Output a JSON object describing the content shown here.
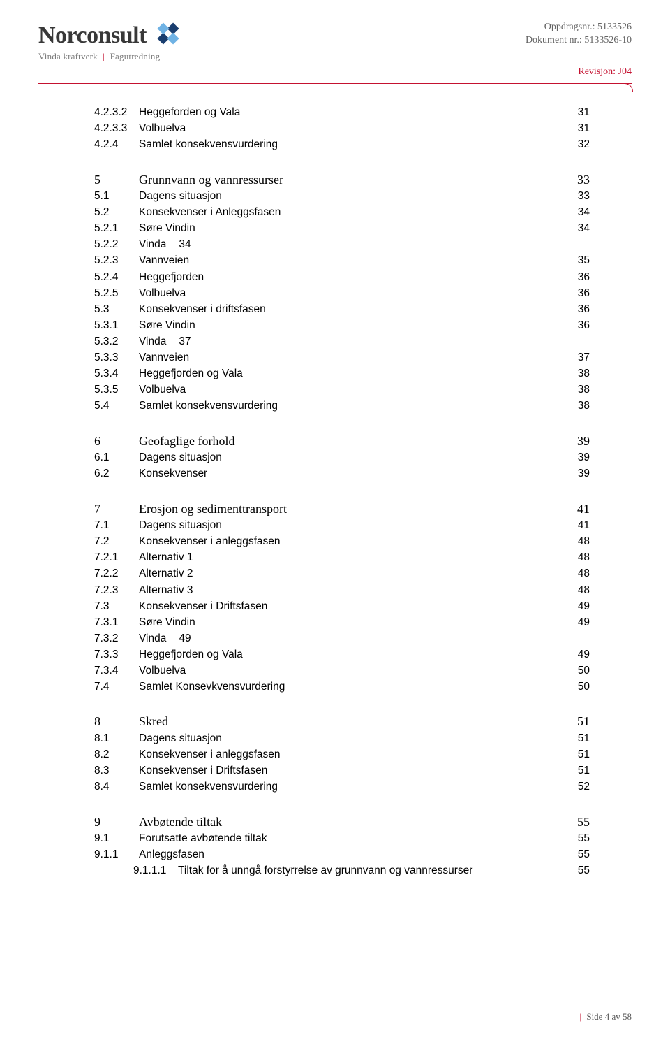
{
  "brand": {
    "name": "Norconsult",
    "tagline_left": "Vinda kraftverk",
    "tagline_right": "Fagutredning",
    "logo_colors": {
      "dark": "#1a3e6f",
      "light": "#6fb2e4"
    }
  },
  "header": {
    "oppdrag_label": "Oppdragsnr.:",
    "oppdrag_value": "5133526",
    "dokument_label": "Dokument nr.:",
    "dokument_value": "5133526-10",
    "revision_label": "Revisjon:",
    "revision_value": "J04"
  },
  "toc": [
    {
      "type": "row",
      "level": 2,
      "num": "4.2.3.2",
      "label": "Heggeforden og Vala",
      "page": "31"
    },
    {
      "type": "row",
      "level": 2,
      "num": "4.2.3.3",
      "label": "Volbuelva",
      "page": "31"
    },
    {
      "type": "row",
      "level": 1,
      "num": "4.2.4",
      "label": "Samlet konsekvensvurdering",
      "page": "32"
    },
    {
      "type": "gap"
    },
    {
      "type": "chapter",
      "num": "5",
      "label": "Grunnvann og vannressurser",
      "page": "33"
    },
    {
      "type": "row",
      "level": 1,
      "num": "5.1",
      "label": "Dagens situasjon",
      "page": "33"
    },
    {
      "type": "row",
      "level": 1,
      "num": "5.2",
      "label": "Konsekvenser i Anleggsfasen",
      "page": "34"
    },
    {
      "type": "row",
      "level": 2,
      "num": "5.2.1",
      "label": "Søre Vindin",
      "page": "34"
    },
    {
      "type": "inline",
      "level": 2,
      "num": "5.2.2",
      "label": "Vinda",
      "page": "34"
    },
    {
      "type": "row",
      "level": 2,
      "num": "5.2.3",
      "label": "Vannveien",
      "page": "35"
    },
    {
      "type": "row",
      "level": 2,
      "num": "5.2.4",
      "label": "Heggefjorden",
      "page": "36"
    },
    {
      "type": "row",
      "level": 2,
      "num": "5.2.5",
      "label": "Volbuelva",
      "page": "36"
    },
    {
      "type": "row",
      "level": 1,
      "num": "5.3",
      "label": "Konsekvenser i driftsfasen",
      "page": "36"
    },
    {
      "type": "row",
      "level": 2,
      "num": "5.3.1",
      "label": "Søre Vindin",
      "page": "36"
    },
    {
      "type": "inline",
      "level": 2,
      "num": "5.3.2",
      "label": "Vinda",
      "page": "37"
    },
    {
      "type": "row",
      "level": 2,
      "num": "5.3.3",
      "label": "Vannveien",
      "page": "37"
    },
    {
      "type": "row",
      "level": 2,
      "num": "5.3.4",
      "label": "Heggefjorden og Vala",
      "page": "38"
    },
    {
      "type": "row",
      "level": 2,
      "num": "5.3.5",
      "label": "Volbuelva",
      "page": "38"
    },
    {
      "type": "row",
      "level": 1,
      "num": "5.4",
      "label": "Samlet konsekvensvurdering",
      "page": "38"
    },
    {
      "type": "gap"
    },
    {
      "type": "chapter",
      "num": "6",
      "label": "Geofaglige forhold",
      "page": "39"
    },
    {
      "type": "row",
      "level": 1,
      "num": "6.1",
      "label": "Dagens situasjon",
      "page": "39"
    },
    {
      "type": "row",
      "level": 1,
      "num": "6.2",
      "label": "Konsekvenser",
      "page": "39"
    },
    {
      "type": "gap"
    },
    {
      "type": "chapter",
      "num": "7",
      "label": "Erosjon og sedimenttransport",
      "page": "41"
    },
    {
      "type": "row",
      "level": 1,
      "num": "7.1",
      "label": "Dagens situasjon",
      "page": "41"
    },
    {
      "type": "row",
      "level": 1,
      "num": "7.2",
      "label": "Konsekvenser i anleggsfasen",
      "page": "48"
    },
    {
      "type": "row",
      "level": 2,
      "num": "7.2.1",
      "label": "Alternativ 1",
      "page": "48"
    },
    {
      "type": "row",
      "level": 2,
      "num": "7.2.2",
      "label": "Alternativ 2",
      "page": "48"
    },
    {
      "type": "row",
      "level": 2,
      "num": "7.2.3",
      "label": "Alternativ 3",
      "page": "48"
    },
    {
      "type": "row",
      "level": 1,
      "num": "7.3",
      "label": "Konsekvenser i Driftsfasen",
      "page": "49"
    },
    {
      "type": "row",
      "level": 2,
      "num": "7.3.1",
      "label": "Søre Vindin",
      "page": "49"
    },
    {
      "type": "inline",
      "level": 2,
      "num": "7.3.2",
      "label": "Vinda",
      "page": "49"
    },
    {
      "type": "row",
      "level": 2,
      "num": "7.3.3",
      "label": "Heggefjorden og Vala",
      "page": "49"
    },
    {
      "type": "row",
      "level": 2,
      "num": "7.3.4",
      "label": "Volbuelva",
      "page": "50"
    },
    {
      "type": "row",
      "level": 1,
      "num": "7.4",
      "label": "Samlet Konsevkvensvurdering",
      "page": "50"
    },
    {
      "type": "gap"
    },
    {
      "type": "chapter",
      "num": "8",
      "label": "Skred",
      "page": "51"
    },
    {
      "type": "row",
      "level": 1,
      "num": "8.1",
      "label": "Dagens situasjon",
      "page": "51"
    },
    {
      "type": "row",
      "level": 1,
      "num": "8.2",
      "label": "Konsekvenser i anleggsfasen",
      "page": "51"
    },
    {
      "type": "row",
      "level": 1,
      "num": "8.3",
      "label": "Konsekvenser i Driftsfasen",
      "page": "51"
    },
    {
      "type": "row",
      "level": 1,
      "num": "8.4",
      "label": "Samlet konsekvensvurdering",
      "page": "52"
    },
    {
      "type": "gap"
    },
    {
      "type": "chapter",
      "num": "9",
      "label": "Avbøtende tiltak",
      "page": "55"
    },
    {
      "type": "row",
      "level": 1,
      "num": "9.1",
      "label": "Forutsatte avbøtende tiltak",
      "page": "55"
    },
    {
      "type": "row",
      "level": 2,
      "num": "9.1.1",
      "label": "Anleggsfasen",
      "page": "55"
    },
    {
      "type": "row",
      "level": 3,
      "num": "9.1.1.1",
      "label": "Tiltak for å unngå forstyrrelse av grunnvann og vannressurser",
      "page": "55"
    }
  ],
  "footer": {
    "prefix": "Side",
    "current": "4",
    "sep": "av",
    "total": "58"
  },
  "colors": {
    "accent": "#c41230",
    "text_muted": "#636363"
  }
}
